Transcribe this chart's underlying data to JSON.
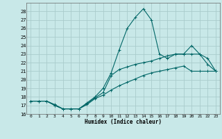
{
  "title": "",
  "xlabel": "Humidex (Indice chaleur)",
  "bg_color": "#c8e8e8",
  "grid_color": "#aacccc",
  "line_color": "#006666",
  "xlim": [
    -0.5,
    23.5
  ],
  "ylim": [
    16,
    29
  ],
  "xticks": [
    0,
    1,
    2,
    3,
    4,
    5,
    6,
    7,
    8,
    9,
    10,
    11,
    12,
    13,
    14,
    15,
    16,
    17,
    18,
    19,
    20,
    21,
    22,
    23
  ],
  "yticks": [
    16,
    17,
    18,
    19,
    20,
    21,
    22,
    23,
    24,
    25,
    26,
    27,
    28
  ],
  "series": [
    [
      17.5,
      17.5,
      17.5,
      17.1,
      16.6,
      16.6,
      16.6,
      17.3,
      18.0,
      19.0,
      20.8,
      23.5,
      26.0,
      27.3,
      28.3,
      27.0,
      23.0,
      22.5,
      23.0,
      23.0,
      24.0,
      23.0,
      21.8,
      21.0
    ],
    [
      17.5,
      17.5,
      17.5,
      17.0,
      16.6,
      16.6,
      16.6,
      17.2,
      17.9,
      18.5,
      20.5,
      21.2,
      21.5,
      21.8,
      22.0,
      22.2,
      22.5,
      22.8,
      23.0,
      23.0,
      23.0,
      23.0,
      22.5,
      21.0
    ],
    [
      17.5,
      17.5,
      17.5,
      17.0,
      16.6,
      16.6,
      16.6,
      17.1,
      17.8,
      18.2,
      18.8,
      19.3,
      19.7,
      20.1,
      20.5,
      20.8,
      21.0,
      21.2,
      21.4,
      21.6,
      21.0,
      21.0,
      21.0,
      21.0
    ]
  ]
}
